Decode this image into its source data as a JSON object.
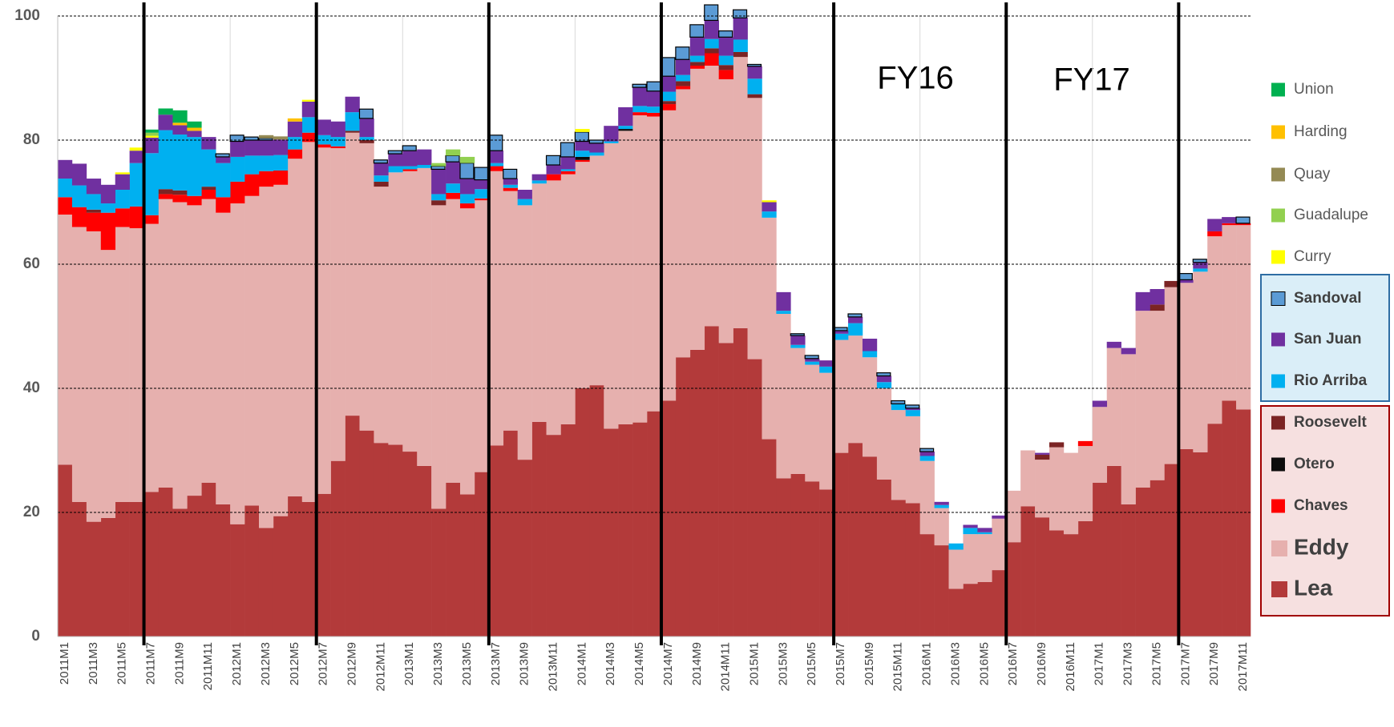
{
  "chart_data": {
    "type": "bar",
    "stacked": true,
    "annotations": [
      "FY16",
      "FY17"
    ],
    "categories": [
      "2011M1",
      null,
      "2011M3",
      null,
      "2011M5",
      null,
      "2011M7",
      null,
      "2011M9",
      null,
      "2011M11",
      null,
      "2012M1",
      null,
      "2012M3",
      null,
      "2012M5",
      null,
      "2012M7",
      null,
      "2012M9",
      null,
      "2012M11",
      null,
      "2013M1",
      null,
      "2013M3",
      null,
      "2013M5",
      null,
      "2013M7",
      null,
      "2013M9",
      null,
      "2013M11",
      null,
      "2014M1",
      null,
      "2014M3",
      null,
      "2014M5",
      null,
      "2014M7",
      null,
      "2014M9",
      null,
      "2014M11",
      null,
      "2015M1",
      null,
      "2015M3",
      null,
      "2015M5",
      null,
      "2015M7",
      null,
      "2015M9",
      null,
      "2015M11",
      null,
      "2016M1",
      null,
      "2016M3",
      null,
      "2016M5",
      null,
      "2016M7",
      null,
      "2016M9",
      null,
      "2016M11",
      null,
      "2017M1",
      null,
      "2017M3",
      null,
      "2017M5",
      null,
      "2017M7",
      null,
      "2017M9",
      null,
      "2017M11"
    ],
    "ylim": [
      0,
      100
    ],
    "yticks": [
      0,
      20,
      40,
      60,
      80,
      100
    ],
    "grid": true,
    "series": [
      {
        "name": "Lea",
        "color": "#b33a3a",
        "values": [
          27.7,
          21.7,
          18.5,
          19.1,
          21.7,
          21.7,
          23.3,
          24.0,
          20.6,
          22.7,
          24.8,
          21.3,
          18.1,
          21.1,
          17.5,
          19.4,
          22.6,
          21.7,
          23.0,
          28.3,
          35.6,
          33.2,
          31.2,
          30.9,
          29.8,
          27.5,
          20.6,
          24.8,
          22.9,
          26.5,
          30.8,
          33.2,
          28.5,
          34.6,
          32.5,
          34.2,
          40.0,
          40.5,
          33.5,
          34.2,
          34.5,
          36.3,
          38.0,
          45.0,
          46.2,
          50.0,
          47.3,
          49.7,
          44.7,
          31.8,
          25.5,
          26.2,
          25.0,
          23.7,
          29.6,
          31.2,
          29.0,
          25.3,
          22.0,
          21.5,
          16.5,
          14.7,
          7.7,
          8.5,
          8.8,
          10.7,
          15.2,
          21.0,
          19.2,
          17.1,
          16.5,
          18.6,
          24.8,
          27.5,
          21.3,
          24.0,
          25.2,
          27.8,
          30.2,
          29.7,
          34.3,
          38.0,
          36.6
        ]
      },
      {
        "name": "Eddy",
        "color": "#e6b0ae",
        "values": [
          40.3,
          44.3,
          46.8,
          43.2,
          44.3,
          44.1,
          43.2,
          46.5,
          49.4,
          46.8,
          45.7,
          47.0,
          51.7,
          49.9,
          55.0,
          53.4,
          54.4,
          58.0,
          55.8,
          50.4,
          45.6,
          46.3,
          41.3,
          43.9,
          45.2,
          48.0,
          48.9,
          45.7,
          46.1,
          43.8,
          44.2,
          38.6,
          41.0,
          38.4,
          41.0,
          40.3,
          36.5,
          37.0,
          46.0,
          47.3,
          49.5,
          47.5,
          46.8,
          43.2,
          45.3,
          42.0,
          42.5,
          43.7,
          42.1,
          35.7,
          26.5,
          20.3,
          18.8,
          18.8,
          18.2,
          17.3,
          16.0,
          14.7,
          14.5,
          14.0,
          11.8,
          6.0,
          6.3,
          8.0,
          7.7,
          8.3,
          8.3,
          9.0,
          9.3,
          13.4,
          13.1,
          12.1,
          12.2,
          19.0,
          24.2,
          28.5,
          27.3,
          28.5,
          26.8,
          29.1,
          30.2,
          28.3,
          29.7
        ]
      },
      {
        "name": "Chaves",
        "color": "#ff0000",
        "values": [
          2.8,
          3.2,
          3.0,
          6.0,
          3.0,
          3.5,
          1.4,
          0.8,
          1.2,
          1.5,
          1.5,
          2.5,
          3.5,
          3.5,
          2.5,
          2.3,
          1.5,
          1.5,
          0.5,
          0.3,
          0,
          0,
          0,
          0,
          0.3,
          0,
          0,
          1.0,
          0.8,
          0.3,
          0.8,
          0.5,
          0,
          0,
          1.0,
          0.5,
          0.3,
          0,
          0,
          0,
          0.5,
          0.6,
          1.0,
          0.5,
          0.5,
          2.0,
          1.5,
          0,
          0,
          0,
          0,
          0,
          0,
          0,
          0,
          0,
          0,
          0,
          0,
          0,
          0,
          0,
          0,
          0,
          0,
          0,
          0,
          0,
          0,
          0,
          0,
          0.8,
          0,
          0,
          0,
          0,
          0,
          0,
          0,
          0,
          0.8,
          0.3,
          0.3
        ]
      },
      {
        "name": "Otero",
        "color": "#0d0d0d",
        "values": [
          0,
          0,
          0,
          0,
          0,
          0,
          0,
          0,
          0,
          0,
          0,
          0,
          0,
          0,
          0,
          0,
          0,
          0,
          0,
          0,
          0,
          0,
          0,
          0,
          0,
          0,
          0,
          0,
          0,
          0,
          0,
          0,
          0,
          0,
          0,
          0,
          0.5,
          0,
          0,
          0.3,
          0,
          0,
          0,
          0,
          0,
          0,
          0,
          0,
          0,
          0,
          0,
          0,
          0,
          0,
          0,
          0,
          0,
          0,
          0,
          0,
          0,
          0,
          0,
          0,
          0,
          0,
          0,
          0,
          0,
          0,
          0,
          0,
          0,
          0,
          0,
          0,
          0,
          0,
          0,
          0,
          0,
          0,
          0
        ]
      },
      {
        "name": "Roosevelt",
        "color": "#7b2424",
        "values": [
          0,
          0,
          0.5,
          0,
          0,
          0,
          0,
          0.8,
          0.7,
          0,
          0.5,
          0,
          0,
          0,
          0,
          0,
          0,
          0,
          0,
          0,
          0.3,
          0.5,
          0.8,
          0,
          0,
          0,
          0.8,
          0,
          0,
          0,
          0,
          0,
          0,
          0,
          0,
          0,
          0,
          0,
          0,
          0,
          0,
          0,
          0.5,
          0.8,
          0.6,
          0.8,
          0.8,
          0.8,
          0.6,
          0,
          0,
          0,
          0,
          0,
          0,
          0,
          0,
          0,
          0,
          0,
          0,
          0,
          0,
          0,
          0,
          0,
          0,
          0,
          0.8,
          0.8,
          0,
          0,
          0,
          0,
          0,
          0,
          1.0,
          1.0,
          0,
          0,
          0,
          0,
          0
        ]
      },
      {
        "name": "Rio Arriba",
        "color": "#00b0f0",
        "values": [
          3.0,
          3.5,
          2.5,
          1.5,
          3.0,
          7.0,
          10.0,
          9.5,
          9.0,
          9.5,
          6.0,
          5.5,
          4.0,
          3.0,
          2.5,
          2.5,
          2.0,
          2.5,
          1.5,
          1.5,
          3.0,
          0.5,
          1.0,
          1.0,
          0.5,
          0.5,
          1.0,
          1.5,
          1.5,
          1.5,
          0.5,
          0.5,
          1.0,
          0.5,
          0,
          0.3,
          1.0,
          0.5,
          0.3,
          0.5,
          1.0,
          1.0,
          1.5,
          1.0,
          1.0,
          1.5,
          1.5,
          2.0,
          2.5,
          1.0,
          0.5,
          0.5,
          0.5,
          1.0,
          1.0,
          2.0,
          1.0,
          1.0,
          1.0,
          1.0,
          0.8,
          0.5,
          1.0,
          1.0,
          0.3,
          0,
          0,
          0,
          0,
          0,
          0,
          0,
          0,
          0,
          0,
          0,
          0,
          0,
          0,
          0.5,
          0,
          0,
          0
        ]
      },
      {
        "name": "San Juan",
        "color": "#7030a0",
        "values": [
          3.0,
          3.5,
          2.5,
          3.0,
          2.5,
          2.0,
          2.5,
          2.5,
          1.5,
          1.0,
          2.0,
          1.0,
          2.5,
          2.5,
          2.5,
          2.5,
          2.5,
          2.5,
          2.5,
          2.5,
          2.5,
          3.0,
          2.0,
          2.0,
          2.5,
          2.5,
          4.0,
          3.5,
          2.5,
          1.5,
          2.0,
          1.0,
          1.5,
          1.0,
          1.5,
          2.0,
          1.5,
          1.5,
          2.5,
          3.0,
          3.0,
          2.5,
          2.5,
          2.5,
          3.0,
          3.0,
          3.0,
          3.5,
          2.0,
          1.5,
          3.0,
          1.5,
          0.5,
          1.0,
          0.5,
          1.0,
          2.0,
          1.0,
          0,
          0.3,
          0.7,
          0.5,
          0,
          0.5,
          0.7,
          0.5,
          0,
          0,
          0.3,
          0,
          0,
          0,
          1.0,
          1.0,
          1.0,
          3.0,
          2.5,
          0,
          0.5,
          1.0,
          2.0,
          1.0,
          0
        ]
      },
      {
        "name": "Sandoval",
        "color": "#5b9bd5",
        "outline": "#000000",
        "values": [
          0,
          0,
          0,
          0,
          0,
          0,
          0,
          0,
          0,
          0,
          0,
          0.5,
          1.0,
          0.5,
          0.3,
          0,
          0,
          0,
          0,
          0,
          0,
          1.5,
          0.5,
          0.5,
          0.8,
          0,
          0.5,
          1.0,
          2.5,
          2.0,
          2.5,
          1.5,
          0,
          0,
          1.5,
          2.3,
          1.5,
          0.5,
          0,
          0,
          0.5,
          1.5,
          3.0,
          2.0,
          2.0,
          2.5,
          1.0,
          1.3,
          0.3,
          0,
          0,
          0.3,
          0.5,
          0,
          0.5,
          0.5,
          0,
          0.5,
          0.5,
          0.5,
          0.5,
          0,
          0,
          0,
          0,
          0,
          0,
          0,
          0,
          0,
          0,
          0,
          0,
          0,
          0,
          0,
          0,
          0,
          1.0,
          0.5,
          0,
          0,
          1.0
        ]
      },
      {
        "name": "Curry",
        "color": "#ffff00",
        "values": [
          0,
          0,
          0,
          0,
          0.3,
          0.5,
          0.3,
          0,
          0,
          0,
          0,
          0,
          0,
          0,
          0,
          0,
          0,
          0.3,
          0,
          0,
          0,
          0,
          0,
          0,
          0,
          0,
          0,
          0,
          0,
          0,
          0,
          0,
          0,
          0,
          0,
          0,
          0.5,
          0,
          0,
          0,
          0,
          0,
          0,
          0,
          0,
          0,
          0,
          0,
          0,
          0.3,
          0,
          0,
          0,
          0,
          0,
          0,
          0,
          0,
          0,
          0,
          0,
          0,
          0,
          0,
          0,
          0,
          0,
          0,
          0,
          0,
          0,
          0,
          0,
          0,
          0,
          0,
          0,
          0,
          0,
          0,
          0,
          0,
          0
        ]
      },
      {
        "name": "Guadalupe",
        "color": "#92d050",
        "values": [
          0,
          0,
          0,
          0,
          0,
          0,
          0.5,
          0,
          0,
          0,
          0,
          0,
          0,
          0,
          0,
          0,
          0,
          0,
          0,
          0,
          0,
          0,
          0,
          0,
          0,
          0,
          0.5,
          1.0,
          1.0,
          0,
          0,
          0,
          0,
          0,
          0,
          0,
          0,
          0,
          0,
          0,
          0,
          0,
          0,
          0,
          0,
          0,
          0,
          0,
          0,
          0,
          0,
          0,
          0,
          0,
          0,
          0,
          0,
          0,
          0,
          0,
          0,
          0,
          0,
          0,
          0,
          0,
          0,
          0,
          0,
          0,
          0,
          0,
          0,
          0,
          0,
          0,
          0,
          0,
          0,
          0,
          0,
          0,
          0
        ]
      },
      {
        "name": "Quay",
        "color": "#948a54",
        "values": [
          0,
          0,
          0,
          0,
          0,
          0,
          0,
          0,
          0,
          0,
          0,
          0,
          0,
          0,
          0.5,
          0.5,
          0,
          0,
          0,
          0,
          0,
          0,
          0,
          0,
          0,
          0,
          0,
          0,
          0,
          0,
          0,
          0,
          0,
          0,
          0,
          0,
          0,
          0,
          0,
          0,
          0,
          0,
          0,
          0,
          0,
          0,
          0,
          0,
          0,
          0,
          0,
          0,
          0,
          0,
          0,
          0,
          0,
          0,
          0,
          0,
          0,
          0,
          0,
          0,
          0,
          0,
          0,
          0,
          0,
          0,
          0,
          0,
          0,
          0,
          0,
          0,
          0,
          0,
          0,
          0,
          0,
          0,
          0
        ]
      },
      {
        "name": "Harding",
        "color": "#ffc000",
        "values": [
          0,
          0,
          0,
          0,
          0,
          0,
          0,
          0,
          0.4,
          0.5,
          0,
          0,
          0,
          0,
          0,
          0,
          0.5,
          0,
          0,
          0,
          0,
          0,
          0,
          0,
          0,
          0,
          0,
          0,
          0,
          0,
          0,
          0,
          0,
          0,
          0,
          0,
          0,
          0,
          0,
          0,
          0,
          0,
          0,
          0,
          0,
          0,
          0,
          0,
          0,
          0,
          0,
          0,
          0,
          0,
          0,
          0,
          0,
          0,
          0,
          0,
          0,
          0,
          0,
          0,
          0,
          0,
          0,
          0,
          0,
          0,
          0,
          0,
          0,
          0,
          0,
          0,
          0,
          0,
          0,
          0,
          0,
          0,
          0
        ]
      },
      {
        "name": "Union",
        "color": "#00b050",
        "values": [
          0,
          0,
          0,
          0,
          0,
          0,
          0.5,
          1.0,
          2.0,
          1.0,
          0,
          0,
          0,
          0,
          0,
          0,
          0,
          0,
          0,
          0,
          0,
          0,
          0,
          0,
          0,
          0,
          0,
          0,
          0,
          0,
          0,
          0,
          0,
          0,
          0,
          0,
          0,
          0,
          0,
          0,
          0,
          0,
          0,
          0,
          0,
          0,
          0,
          0,
          0,
          0,
          0,
          0,
          0,
          0,
          0,
          0,
          0,
          0,
          0,
          0,
          0,
          0,
          0,
          0,
          0,
          0,
          0,
          0,
          0,
          0,
          0,
          0,
          0,
          0,
          0,
          0,
          0,
          0,
          0,
          0,
          0,
          0,
          0
        ]
      }
    ]
  }
}
